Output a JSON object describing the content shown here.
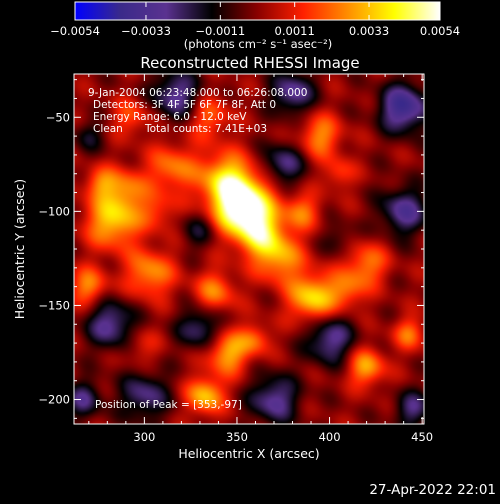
{
  "chart_data": {
    "type": "heatmap",
    "title": "Reconstructed RHESSI Image",
    "xlabel": "Heliocentric X (arcsec)",
    "ylabel": "Heliocentric Y (arcsec)",
    "xlim": [
      262,
      451
    ],
    "ylim": [
      -213,
      -27
    ],
    "x_ticks": [
      300,
      350,
      400,
      450
    ],
    "y_ticks": [
      -50,
      -100,
      -150,
      -200
    ],
    "x_tick_labels": [
      "300",
      "350",
      "400",
      "450"
    ],
    "y_tick_labels": [
      "−50",
      "−100",
      "−150",
      "−200"
    ],
    "colorbar": {
      "range": [
        -0.0054,
        0.0054
      ],
      "ticks": [
        -0.0054,
        -0.0033,
        -0.0011,
        0.0011,
        0.0033,
        0.0054
      ],
      "tick_labels": [
        "−0.0054",
        "−0.0033",
        "−0.0011",
        "0.0011",
        "0.0033",
        "0.0054"
      ],
      "unit_label": "(photons cm⁻² s⁻¹ asec⁻²)",
      "colors": [
        "#0000ff",
        "#3a2a8a",
        "#5a3290",
        "#000000",
        "#8a0000",
        "#ff2000",
        "#ff9000",
        "#ffff00",
        "#ffffff"
      ]
    },
    "annotations": {
      "time_range": "9-Jan-2004 06:23:48.000 to 06:26:08.000",
      "detectors": "Detectors: 3F 4F 5F 6F 7F 8F, Att 0",
      "energy_range": "Energy Range: 6.0 - 12.0 keV",
      "clean_label": "Clean",
      "total_counts": "Total counts: 7.41E+03",
      "peak_position": "Position of Peak = [353,-97]"
    },
    "peak": {
      "x": 353,
      "y": -97
    },
    "blobs": [
      {
        "x": 353,
        "y": -97,
        "amp": 0.0062,
        "s": 11
      },
      {
        "x": 343,
        "y": -82,
        "amp": 0.003,
        "s": 10
      },
      {
        "x": 363,
        "y": -112,
        "amp": 0.003,
        "s": 9
      },
      {
        "x": 283,
        "y": -105,
        "amp": 0.0036,
        "s": 10
      },
      {
        "x": 290,
        "y": -88,
        "amp": 0.0022,
        "s": 8
      },
      {
        "x": 276,
        "y": -85,
        "amp": 0.002,
        "s": 6
      },
      {
        "x": 315,
        "y": -77,
        "amp": 0.0024,
        "s": 9
      },
      {
        "x": 307,
        "y": -100,
        "amp": 0.0016,
        "s": 7
      },
      {
        "x": 270,
        "y": -140,
        "amp": 0.0026,
        "s": 7
      },
      {
        "x": 303,
        "y": -133,
        "amp": 0.0028,
        "s": 9
      },
      {
        "x": 338,
        "y": -143,
        "amp": 0.0024,
        "s": 8
      },
      {
        "x": 373,
        "y": -125,
        "amp": 0.0028,
        "s": 9
      },
      {
        "x": 391,
        "y": -146,
        "amp": 0.0038,
        "s": 9
      },
      {
        "x": 410,
        "y": -142,
        "amp": 0.002,
        "s": 7
      },
      {
        "x": 420,
        "y": -128,
        "amp": 0.0024,
        "s": 8
      },
      {
        "x": 385,
        "y": -100,
        "amp": 0.0022,
        "s": 7
      },
      {
        "x": 395,
        "y": -60,
        "amp": 0.0026,
        "s": 8
      },
      {
        "x": 405,
        "y": -80,
        "amp": 0.0016,
        "s": 6
      },
      {
        "x": 335,
        "y": -50,
        "amp": 0.002,
        "s": 8
      },
      {
        "x": 293,
        "y": -50,
        "amp": 0.0018,
        "s": 7
      },
      {
        "x": 345,
        "y": -175,
        "amp": 0.0032,
        "s": 8
      },
      {
        "x": 360,
        "y": -168,
        "amp": 0.002,
        "s": 6
      },
      {
        "x": 333,
        "y": -198,
        "amp": 0.0034,
        "s": 7
      },
      {
        "x": 420,
        "y": -183,
        "amp": 0.003,
        "s": 7
      },
      {
        "x": 443,
        "y": -165,
        "amp": 0.0022,
        "s": 6
      },
      {
        "x": 298,
        "y": -172,
        "amp": 0.0012,
        "s": 7
      },
      {
        "x": 317,
        "y": -38,
        "amp": -0.003,
        "s": 9
      },
      {
        "x": 380,
        "y": -37,
        "amp": -0.003,
        "s": 8
      },
      {
        "x": 440,
        "y": -45,
        "amp": -0.004,
        "s": 9
      },
      {
        "x": 375,
        "y": -75,
        "amp": -0.0026,
        "s": 8
      },
      {
        "x": 440,
        "y": -100,
        "amp": -0.003,
        "s": 9
      },
      {
        "x": 330,
        "y": -110,
        "amp": -0.0016,
        "s": 7
      },
      {
        "x": 282,
        "y": -160,
        "amp": -0.003,
        "s": 9
      },
      {
        "x": 330,
        "y": -162,
        "amp": -0.0026,
        "s": 8
      },
      {
        "x": 400,
        "y": -168,
        "amp": -0.003,
        "s": 9
      },
      {
        "x": 300,
        "y": -198,
        "amp": -0.0026,
        "s": 9
      },
      {
        "x": 370,
        "y": -200,
        "amp": -0.003,
        "s": 9
      },
      {
        "x": 267,
        "y": -200,
        "amp": -0.0024,
        "s": 7
      },
      {
        "x": 445,
        "y": -205,
        "amp": -0.0024,
        "s": 7
      },
      {
        "x": 405,
        "y": -115,
        "amp": -0.0012,
        "s": 6
      },
      {
        "x": 270,
        "y": -60,
        "amp": -0.0014,
        "s": 6
      }
    ]
  },
  "footer": {
    "timestamp": "27-Apr-2022 22:01"
  }
}
